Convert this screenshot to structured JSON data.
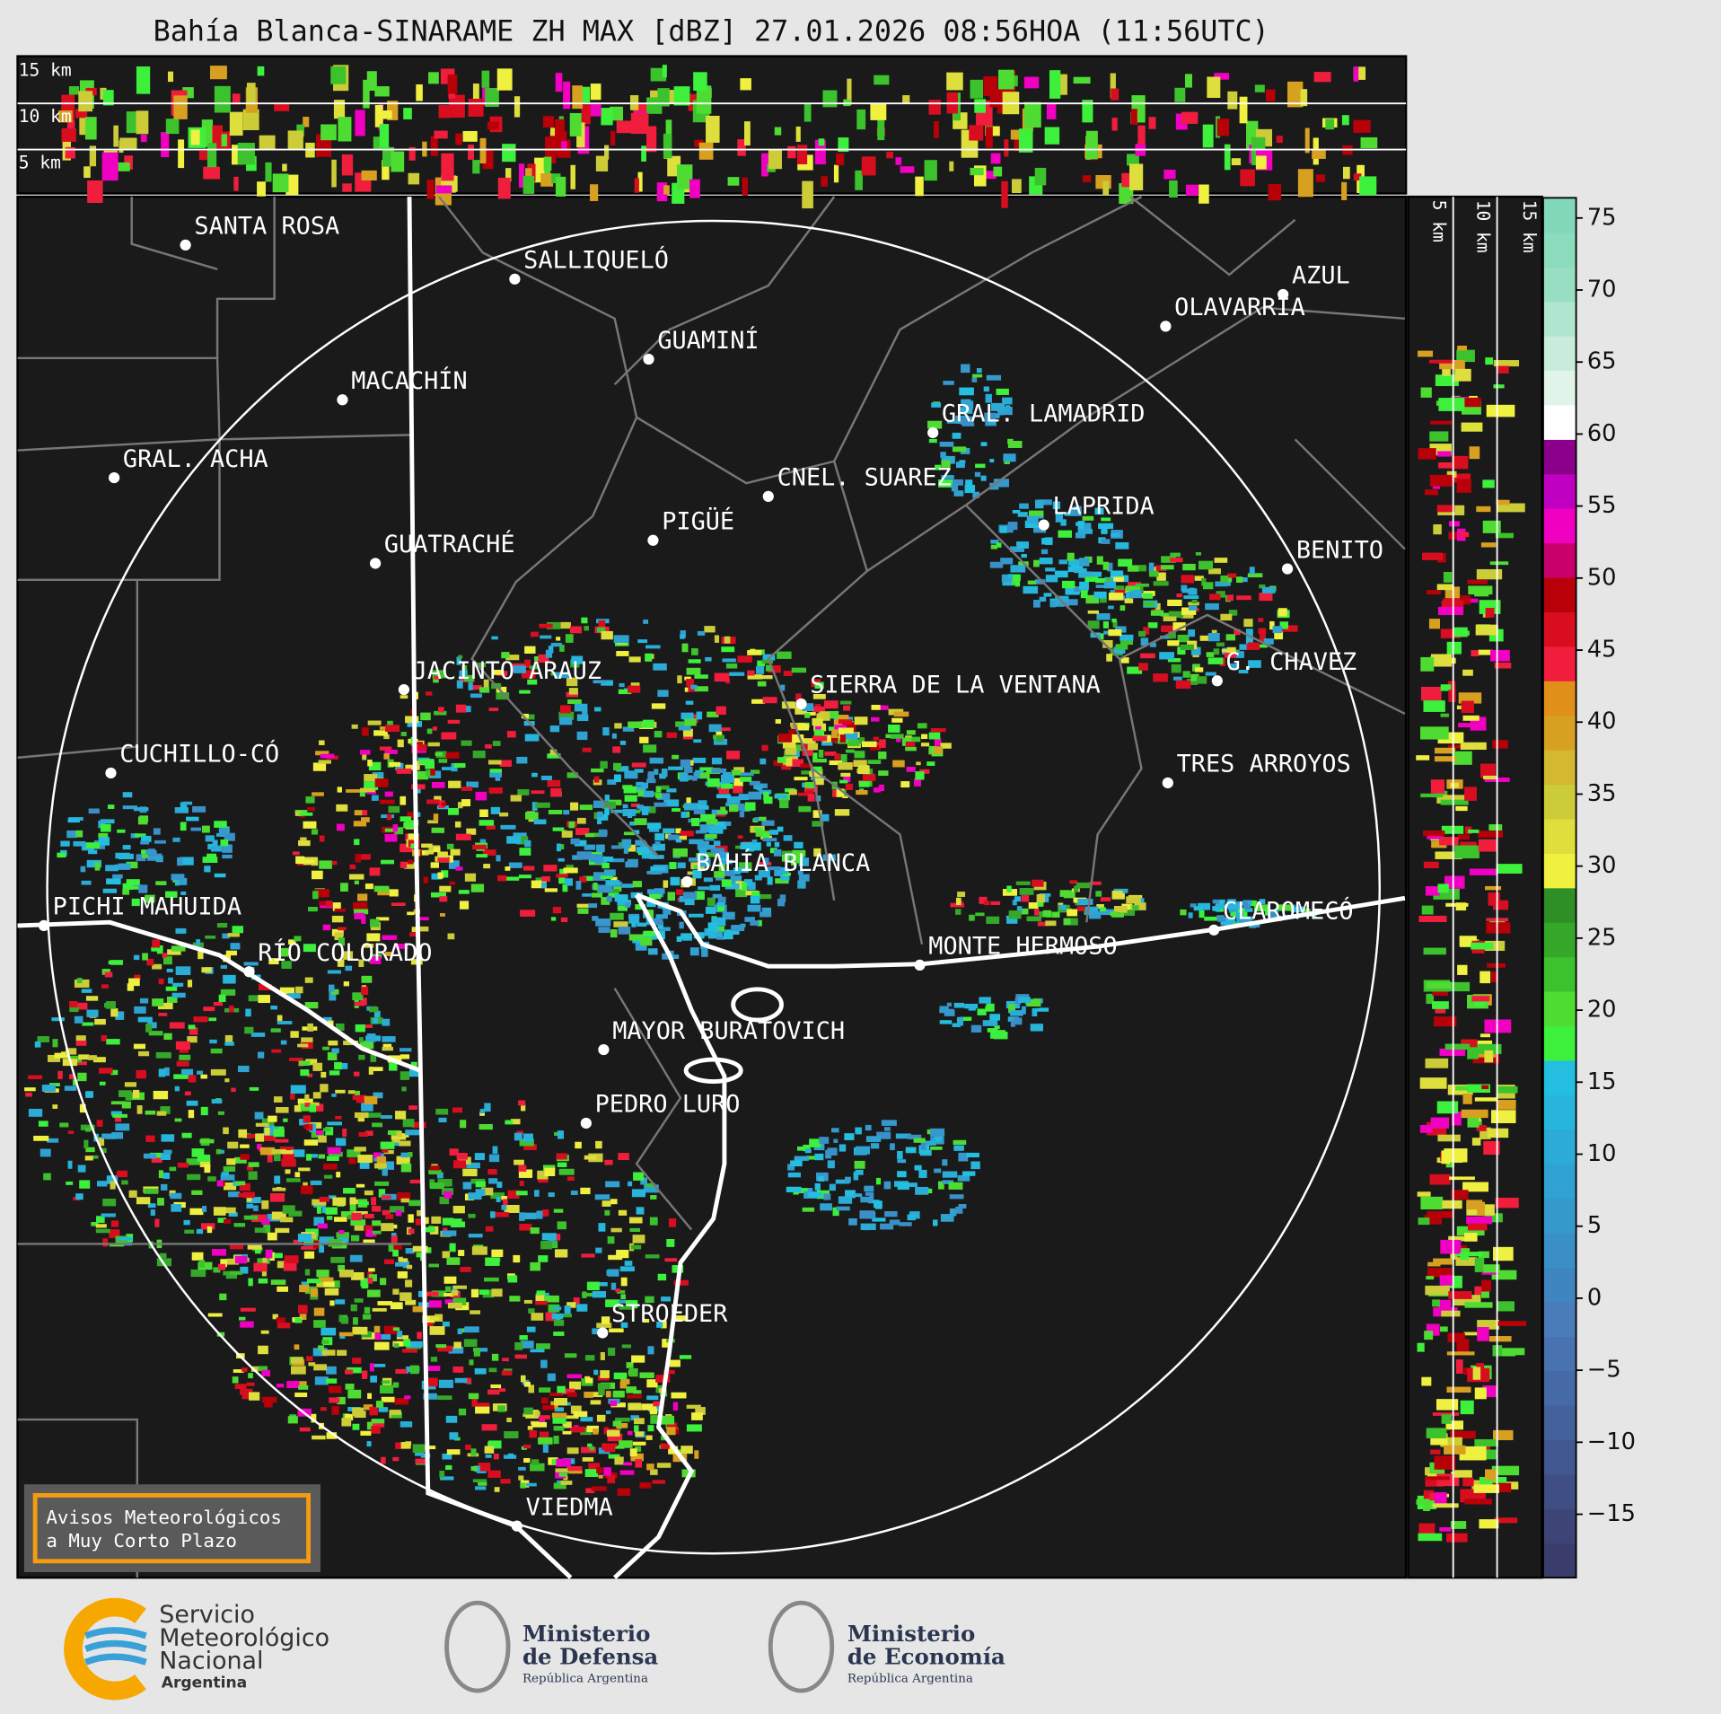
{
  "title": "Bahía Blanca-SINARAME ZH MAX [dBZ] 27.01.2026 08:56HOA (11:56UTC)",
  "height_labels": {
    "top": [
      "15 km",
      "10 km",
      "5 km"
    ],
    "side": [
      "5 km",
      "10 km",
      "15 km"
    ]
  },
  "cities": [
    "SANTA ROSA",
    "SALLIQUELÓ",
    "GUAMINÍ",
    "MACACHÍN",
    "GRAL. ACHA",
    "CNEL. SUAREZ",
    "PIGÜÉ",
    "GUATRACHÉ",
    "AZUL",
    "OLAVARRÍA",
    "GRAL. LAMADRID",
    "LAPRIDA",
    "BENITO",
    "G. CHAVEZ",
    "SIERRA DE LA VENTANA",
    "JACINTO ARAUZ",
    "CUCHILLO-CÓ",
    "TRES ARROYOS",
    "BAHÍA BLANCA",
    "PICHI MAHUIDA",
    "CLAROMECÓ",
    "RÍO COLORADO",
    "MONTE HERMOSO",
    "MAYOR BURATOVICH",
    "PEDRO LURO",
    "STROEDER",
    "VIEDMA"
  ],
  "colorbar": {
    "lim": [
      -19.4,
      76.4
    ],
    "ticks": [
      {
        "value": -15,
        "label": "−15"
      },
      {
        "value": -10,
        "label": "−10"
      },
      {
        "value": -5,
        "label": "−5"
      },
      0,
      5,
      10,
      15,
      20,
      25,
      30,
      35,
      40,
      45,
      50,
      55,
      60,
      65,
      70,
      75
    ],
    "colors": [
      "#3a3d6b",
      "#3d4577",
      "#3f4e84",
      "#425890",
      "#44619b",
      "#466aa6",
      "#4873b0",
      "#4a7cba",
      "#3f86c0",
      "#3a90c6",
      "#3599cc",
      "#30a2d1",
      "#2babd6",
      "#27b5dc",
      "#24bfe0",
      "#3cf03c",
      "#4fdc32",
      "#3cc22c",
      "#35a82a",
      "#2e8f26",
      "#f0f040",
      "#dede3c",
      "#cccc38",
      "#d4b830",
      "#d8a020",
      "#e09018",
      "#f01e3c",
      "#d80e20",
      "#b80008",
      "#c8006c",
      "#f000c0",
      "#c000c0",
      "#8a008a",
      "#ffffff",
      "#e0f4ea",
      "#c8ecdc",
      "#b0e6d0",
      "#98dec2",
      "#8adcbc",
      "#80d8b8"
    ]
  },
  "notice": [
    "Avisos Meteorológicos",
    "a Muy Corto Plazo"
  ],
  "logos": {
    "smn": [
      "Servicio",
      "Meteorológico",
      "Nacional",
      "Argentina"
    ],
    "defensa": [
      "Ministerio",
      "de Defensa",
      "República Argentina"
    ],
    "economia": [
      "Ministerio",
      "de Economía",
      "República Argentina"
    ]
  }
}
